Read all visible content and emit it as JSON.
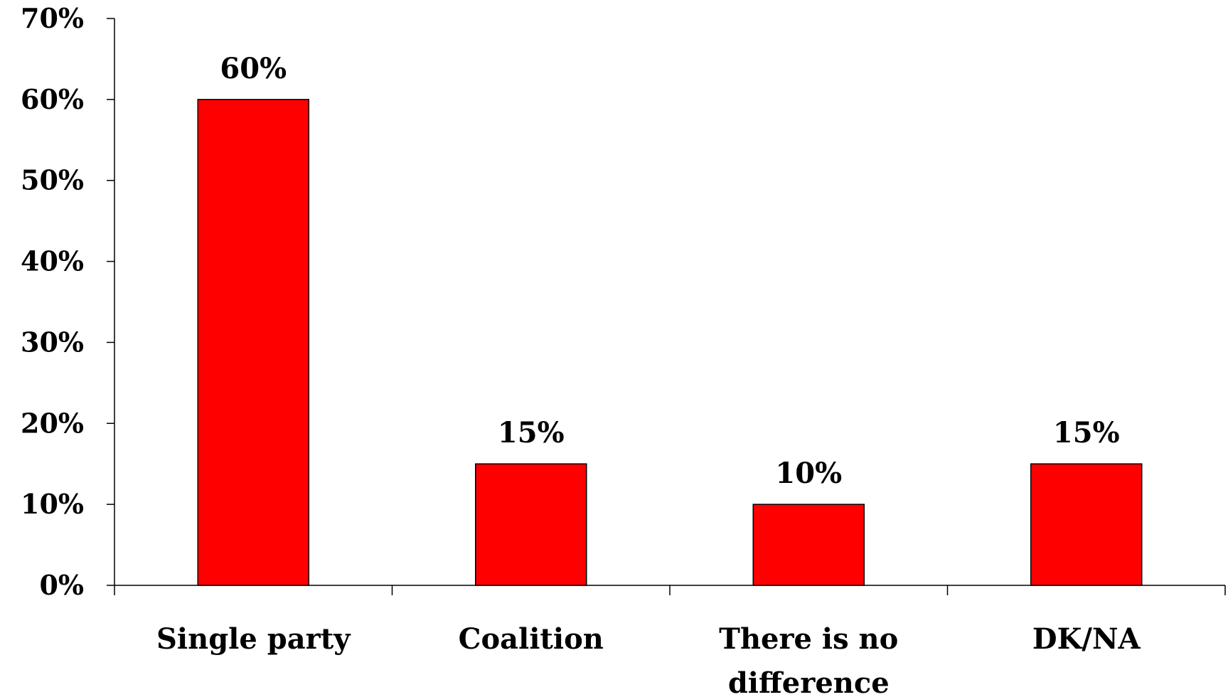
{
  "chart_data": {
    "type": "bar",
    "title": "",
    "xlabel": "",
    "ylabel": "",
    "categories": [
      [
        "Single party"
      ],
      [
        "Coalition"
      ],
      [
        "There is no",
        "difference"
      ],
      [
        "DK/NA"
      ]
    ],
    "values": [
      60,
      15,
      10,
      15
    ],
    "value_labels": [
      "60%",
      "15%",
      "10%",
      "15%"
    ],
    "ylim": [
      0,
      70
    ],
    "yticks": [
      0,
      10,
      20,
      30,
      40,
      50,
      60,
      70
    ],
    "ytick_labels": [
      "0%",
      "10%",
      "20%",
      "30%",
      "40%",
      "50%",
      "60%",
      "70%"
    ],
    "grid": false,
    "legend": "none",
    "bar_color": "#FF0000",
    "bar_edge_color": "#000000"
  }
}
